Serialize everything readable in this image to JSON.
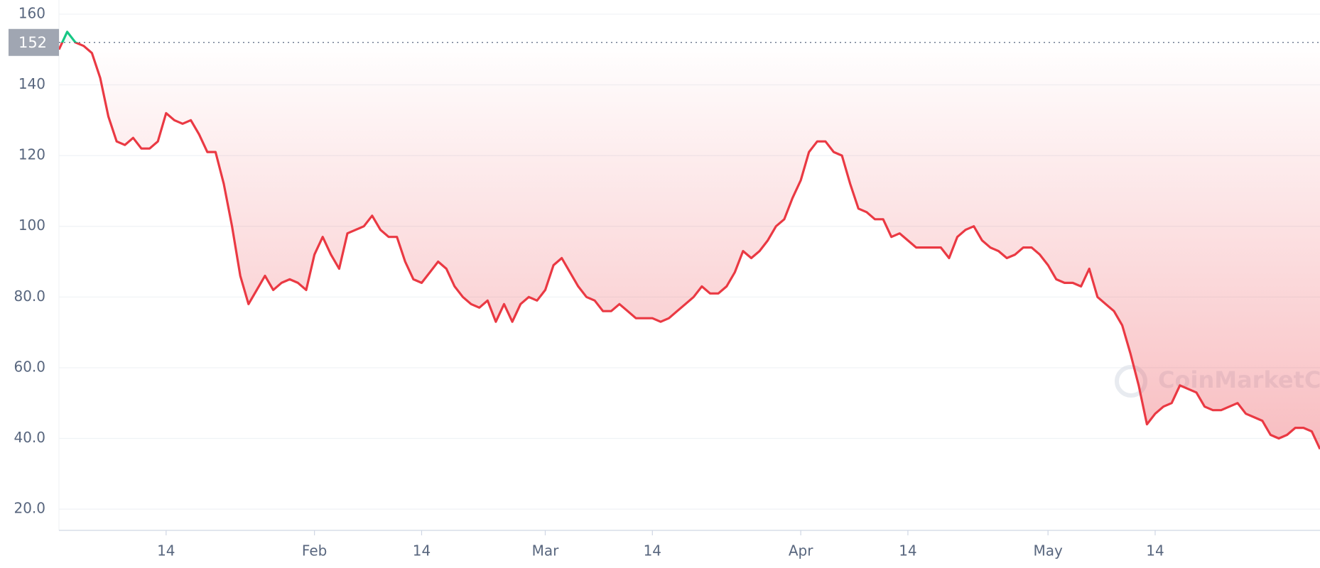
{
  "chart_data": {
    "type": "line",
    "watermark": "CoinMarketCap",
    "categories": [
      null,
      null,
      null,
      null,
      null,
      null,
      null,
      null,
      null,
      null,
      null,
      null,
      null,
      "14",
      null,
      null,
      null,
      null,
      null,
      null,
      null,
      null,
      null,
      null,
      null,
      null,
      null,
      null,
      null,
      null,
      null,
      "Feb",
      null,
      null,
      null,
      null,
      null,
      null,
      null,
      null,
      null,
      null,
      null,
      null,
      "14",
      null,
      null,
      null,
      null,
      null,
      null,
      null,
      null,
      null,
      null,
      null,
      null,
      null,
      null,
      "Mar",
      null,
      null,
      null,
      null,
      null,
      null,
      null,
      null,
      null,
      null,
      null,
      null,
      "14",
      null,
      null,
      null,
      null,
      null,
      null,
      null,
      null,
      null,
      null,
      null,
      null,
      null,
      null,
      null,
      null,
      null,
      "Apr",
      null,
      null,
      null,
      null,
      null,
      null,
      null,
      null,
      null,
      null,
      null,
      null,
      "14",
      null,
      null,
      null,
      null,
      null,
      null,
      null,
      null,
      null,
      null,
      null,
      null,
      null,
      null,
      null,
      null,
      "May",
      null,
      null,
      null,
      null,
      null,
      null,
      null,
      null,
      null,
      null,
      null,
      null,
      "14",
      null,
      null,
      null,
      null,
      null,
      null,
      null,
      null,
      null,
      null,
      null,
      null,
      null,
      null,
      null,
      null,
      null,
      null,
      null,
      null
    ],
    "values": [
      150,
      155,
      152,
      151,
      149,
      142,
      131,
      124,
      123,
      125,
      122,
      122,
      124,
      132,
      130,
      129,
      130,
      126,
      121,
      121,
      112,
      100,
      86,
      78,
      82,
      86,
      82,
      84,
      85,
      84,
      82,
      92,
      97,
      92,
      88,
      98,
      99,
      100,
      103,
      99,
      97,
      97,
      90,
      85,
      84,
      87,
      90,
      88,
      83,
      80,
      78,
      77,
      79,
      73,
      78,
      73,
      78,
      80,
      79,
      82,
      89,
      91,
      87,
      83,
      80,
      79,
      76,
      76,
      78,
      76,
      74,
      74,
      74,
      73,
      74,
      76,
      78,
      80,
      83,
      81,
      81,
      83,
      87,
      93,
      91,
      93,
      96,
      100,
      102,
      108,
      113,
      121,
      124,
      124,
      121,
      120,
      112,
      105,
      104,
      102,
      102,
      97,
      98,
      96,
      94,
      94,
      94,
      94,
      91,
      97,
      99,
      100,
      96,
      94,
      93,
      91,
      92,
      94,
      94,
      92,
      89,
      85,
      84,
      84,
      83,
      88,
      80,
      78,
      76,
      72,
      64,
      55,
      44,
      47,
      49,
      50,
      55,
      54,
      53,
      49,
      48,
      48,
      49,
      50,
      47,
      46,
      45,
      41,
      40,
      41,
      43,
      43,
      42,
      37
    ],
    "reference": 152,
    "color_down": "#ea3943",
    "color_up": "#16c784",
    "ylim": [
      14,
      164
    ],
    "yticks": [
      {
        "value": 20,
        "label": "20.0"
      },
      {
        "value": 40,
        "label": "40.0"
      },
      {
        "value": 60,
        "label": "60.0"
      },
      {
        "value": 80,
        "label": "80.0"
      },
      100,
      120,
      140,
      160
    ],
    "grid": true
  }
}
